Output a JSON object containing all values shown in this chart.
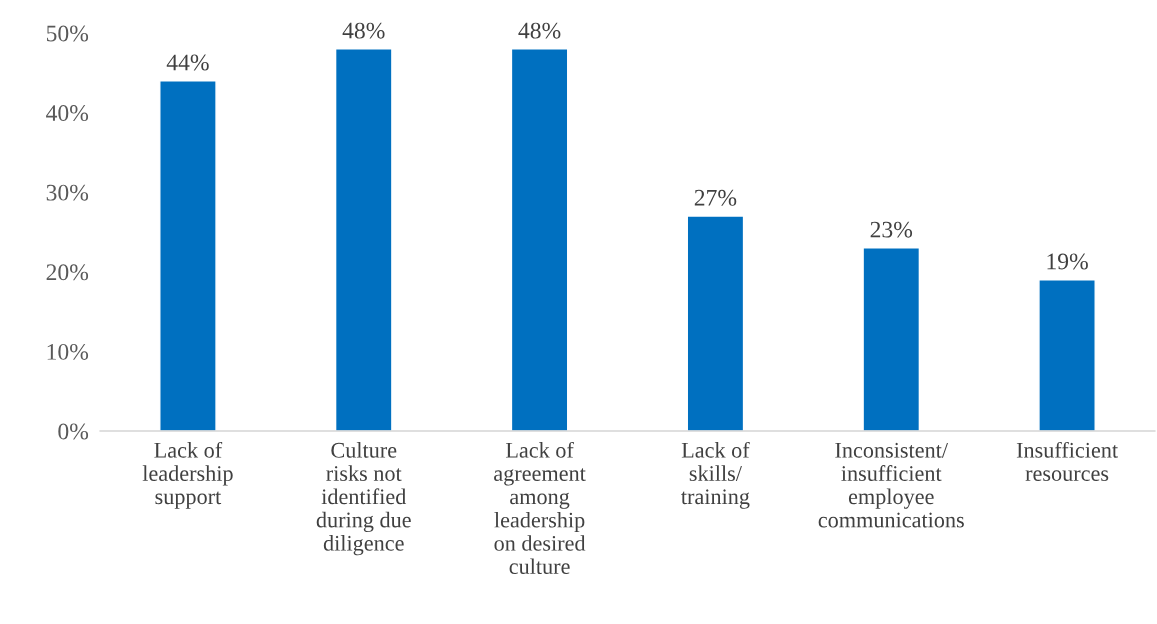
{
  "chart_data": {
    "type": "bar",
    "categories": [
      "Lack of\nleadership\nsupport",
      "Culture\nrisks not\nidentified\nduring due\ndiligence",
      "Lack of\nagreement\namong\nleadership\non desired\nculture",
      "Lack of\nskills/\ntraining",
      "Inconsistent/\ninsufficient\nemployee\ncommunications",
      "Insufficient\nresources"
    ],
    "values": [
      44,
      48,
      48,
      27,
      23,
      19
    ],
    "value_labels": [
      "44%",
      "48%",
      "48%",
      "27%",
      "23%",
      "19%"
    ],
    "color": "#0070c0",
    "ylim": [
      0,
      50
    ],
    "yticks": [
      {
        "value": 0,
        "label": "0%"
      },
      {
        "value": 10,
        "label": "10%"
      },
      {
        "value": 20,
        "label": "20%"
      },
      {
        "value": 30,
        "label": "30%"
      },
      {
        "value": 40,
        "label": "40%"
      },
      {
        "value": 50,
        "label": "50%"
      }
    ],
    "grid": false,
    "legend": false
  }
}
